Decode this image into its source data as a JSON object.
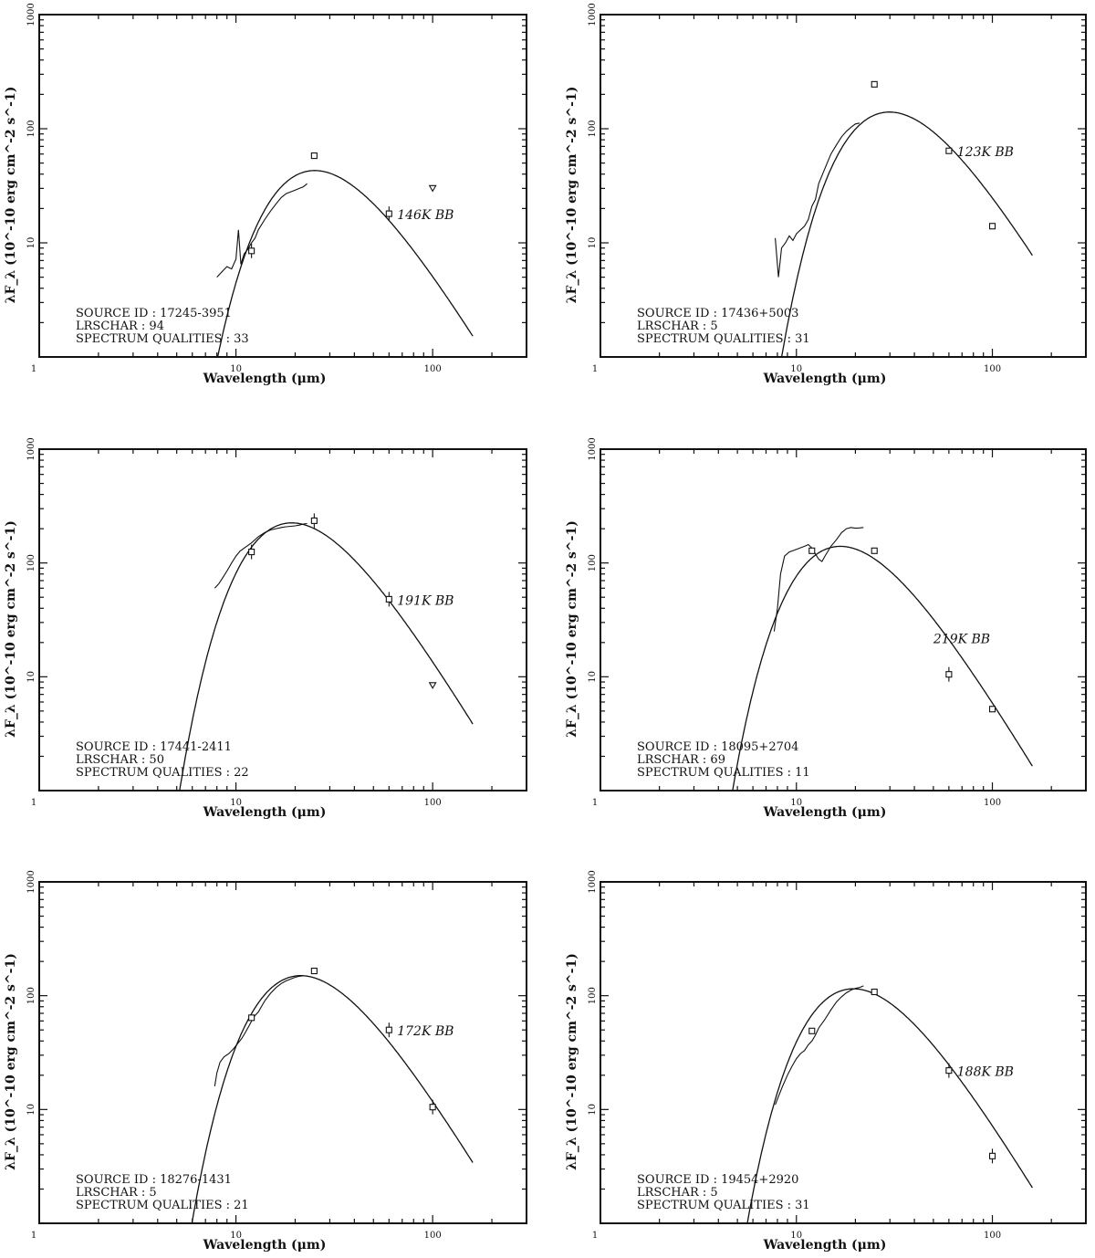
{
  "chart_data": [
    {
      "type": "line",
      "x_label": "Wavelength (μm)",
      "y_label": "λF_λ (10^-10 erg cm^-2 s^-1)",
      "xlim": [
        1,
        300
      ],
      "ylim": [
        1,
        1000
      ],
      "xscale": "log",
      "yscale": "log",
      "x_ticks": [
        "1",
        "10",
        "100"
      ],
      "y_ticks": [
        "1000",
        "100",
        "10"
      ],
      "bb_label": "146K BB",
      "bb_temp": 146,
      "bb_peak": 43,
      "source_id": "SOURCE ID : 17245-3951",
      "lrschar": "LRSCHAR : 94",
      "quality": "SPECTRUM QUALITIES : 33",
      "lrs_spectrum": [
        [
          8,
          5
        ],
        [
          8.5,
          5.6
        ],
        [
          9,
          6.2
        ],
        [
          9.5,
          5.9
        ],
        [
          10,
          7.2
        ],
        [
          10.3,
          13
        ],
        [
          10.6,
          6.5
        ],
        [
          11,
          8
        ],
        [
          11.5,
          8.8
        ],
        [
          12,
          10
        ],
        [
          12.5,
          11
        ],
        [
          13,
          13
        ],
        [
          14,
          16
        ],
        [
          15,
          19
        ],
        [
          16,
          22
        ],
        [
          17,
          25
        ],
        [
          18,
          27
        ],
        [
          19,
          28
        ],
        [
          20,
          29
        ],
        [
          21,
          30
        ],
        [
          22,
          31
        ],
        [
          23,
          33
        ]
      ],
      "photometry": [
        {
          "x": 12,
          "y": 8.5,
          "err": true
        },
        {
          "x": 25,
          "y": 58
        },
        {
          "x": 60,
          "y": 18,
          "err": true
        },
        {
          "x": 100,
          "y": 30,
          "upper": true
        }
      ]
    },
    {
      "type": "line",
      "x_label": "Wavelength (μm)",
      "y_label": "λF_λ (10^-10 erg cm^-2 s^-1)",
      "xlim": [
        1,
        300
      ],
      "ylim": [
        1,
        1000
      ],
      "xscale": "log",
      "yscale": "log",
      "x_ticks": [
        "1",
        "10",
        "100"
      ],
      "y_ticks": [
        "1000",
        "100",
        "10"
      ],
      "bb_label": "123K BB",
      "bb_temp": 123,
      "bb_peak": 140,
      "source_id": "SOURCE ID : 17436+5003",
      "lrschar": "LRSCHAR : 5",
      "quality": "SPECTRUM QUALITIES : 31",
      "lrs_spectrum": [
        [
          7.8,
          11
        ],
        [
          8.1,
          5
        ],
        [
          8.4,
          9
        ],
        [
          8.8,
          10
        ],
        [
          9.2,
          11.5
        ],
        [
          9.6,
          10.5
        ],
        [
          10,
          12
        ],
        [
          10.5,
          13
        ],
        [
          11,
          14
        ],
        [
          11.5,
          16
        ],
        [
          12,
          21
        ],
        [
          12.5,
          24
        ],
        [
          13,
          33
        ],
        [
          14,
          45
        ],
        [
          15,
          60
        ],
        [
          16,
          72
        ],
        [
          17,
          85
        ],
        [
          18,
          95
        ],
        [
          19,
          103
        ],
        [
          20,
          110
        ],
        [
          21,
          112
        ]
      ],
      "photometry": [
        {
          "x": 25,
          "y": 245
        },
        {
          "x": 60,
          "y": 64
        },
        {
          "x": 100,
          "y": 14
        }
      ]
    },
    {
      "type": "line",
      "x_label": "Wavelength (μm)",
      "y_label": "λF_λ (10^-10 erg cm^-2 s^-1)",
      "xlim": [
        1,
        300
      ],
      "ylim": [
        1,
        1000
      ],
      "xscale": "log",
      "yscale": "log",
      "x_ticks": [
        "1",
        "10",
        "100"
      ],
      "y_ticks": [
        "1000",
        "100",
        "10"
      ],
      "bb_label": "191K BB",
      "bb_temp": 191,
      "bb_peak": 225,
      "source_id": "SOURCE ID : 17441-2411",
      "lrschar": "LRSCHAR : 50",
      "quality": "SPECTRUM QUALITIES : 22",
      "lrs_spectrum": [
        [
          7.8,
          60
        ],
        [
          8.2,
          66
        ],
        [
          8.6,
          75
        ],
        [
          9,
          85
        ],
        [
          9.5,
          100
        ],
        [
          10,
          115
        ],
        [
          10.5,
          127
        ],
        [
          11,
          135
        ],
        [
          12,
          150
        ],
        [
          13,
          170
        ],
        [
          14,
          185
        ],
        [
          15,
          195
        ],
        [
          16,
          200
        ],
        [
          17,
          205
        ],
        [
          18,
          208
        ],
        [
          19,
          210
        ],
        [
          20,
          212
        ],
        [
          21,
          215
        ],
        [
          22,
          220
        ],
        [
          23,
          222
        ]
      ],
      "photometry": [
        {
          "x": 12,
          "y": 125,
          "err": true
        },
        {
          "x": 25,
          "y": 235,
          "err": true
        },
        {
          "x": 60,
          "y": 48,
          "err": true
        },
        {
          "x": 100,
          "y": 8.4,
          "upper": true
        }
      ]
    },
    {
      "type": "line",
      "x_label": "Wavelength (μm)",
      "y_label": "λF_λ (10^-10 erg cm^-2 s^-1)",
      "xlim": [
        1,
        300
      ],
      "ylim": [
        1,
        1000
      ],
      "xscale": "log",
      "yscale": "log",
      "x_ticks": [
        "1",
        "10",
        "100"
      ],
      "y_ticks": [
        "1000",
        "100",
        "10"
      ],
      "bb_label": "219K BB",
      "bb_temp": 219,
      "bb_peak": 140,
      "source_id": "SOURCE ID : 18095+2704",
      "lrschar": "LRSCHAR : 69",
      "quality": "SPECTRUM QUALITIES : 11",
      "lrs_spectrum": [
        [
          7.7,
          25
        ],
        [
          8,
          40
        ],
        [
          8.3,
          80
        ],
        [
          8.7,
          115
        ],
        [
          9.2,
          125
        ],
        [
          9.8,
          130
        ],
        [
          10.4,
          135
        ],
        [
          11,
          140
        ],
        [
          11.5,
          145
        ],
        [
          12,
          135
        ],
        [
          12.5,
          120
        ],
        [
          13,
          108
        ],
        [
          13.5,
          103
        ],
        [
          14,
          115
        ],
        [
          15,
          140
        ],
        [
          16,
          160
        ],
        [
          17,
          185
        ],
        [
          18,
          200
        ],
        [
          19,
          205
        ],
        [
          20,
          202
        ],
        [
          21,
          203
        ],
        [
          22,
          205
        ]
      ],
      "photometry": [
        {
          "x": 12,
          "y": 128
        },
        {
          "x": 25,
          "y": 128
        },
        {
          "x": 60,
          "y": 10.5,
          "err": true
        },
        {
          "x": 100,
          "y": 5.2
        }
      ]
    },
    {
      "type": "line",
      "x_label": "Wavelength (μm)",
      "y_label": "λF_λ (10^-10 erg cm^-2 s^-1)",
      "xlim": [
        1,
        300
      ],
      "ylim": [
        1,
        1000
      ],
      "xscale": "log",
      "yscale": "log",
      "x_ticks": [
        "1",
        "10",
        "100"
      ],
      "y_ticks": [
        "1000",
        "100",
        "10"
      ],
      "bb_label": "172K BB",
      "bb_temp": 172,
      "bb_peak": 150,
      "source_id": "SOURCE ID : 18276-1431",
      "lrschar": "LRSCHAR : 5",
      "quality": "SPECTRUM QUALITIES : 21",
      "lrs_spectrum": [
        [
          7.8,
          16
        ],
        [
          8,
          21
        ],
        [
          8.3,
          26
        ],
        [
          8.7,
          29
        ],
        [
          9.2,
          31
        ],
        [
          9.7,
          34
        ],
        [
          10.2,
          38
        ],
        [
          10.7,
          42
        ],
        [
          11.2,
          48
        ],
        [
          11.7,
          55
        ],
        [
          12.3,
          65
        ],
        [
          13,
          72
        ],
        [
          14,
          90
        ],
        [
          15,
          105
        ],
        [
          16,
          118
        ],
        [
          17,
          128
        ],
        [
          18,
          135
        ],
        [
          19,
          140
        ],
        [
          20,
          145
        ],
        [
          21,
          148
        ],
        [
          22,
          150
        ]
      ],
      "photometry": [
        {
          "x": 12,
          "y": 64
        },
        {
          "x": 25,
          "y": 165
        },
        {
          "x": 60,
          "y": 50,
          "err": true
        },
        {
          "x": 100,
          "y": 10.5,
          "err": true
        }
      ]
    },
    {
      "type": "line",
      "x_label": "Wavelength (μm)",
      "y_label": "λF_λ (10^-10 erg cm^-2 s^-1)",
      "xlim": [
        1,
        300
      ],
      "ylim": [
        1,
        1000
      ],
      "xscale": "log",
      "yscale": "log",
      "x_ticks": [
        "1",
        "10",
        "100"
      ],
      "y_ticks": [
        "1000",
        "100",
        "10"
      ],
      "bb_label": "188K BB",
      "bb_temp": 188,
      "bb_peak": 115,
      "source_id": "SOURCE ID : 19454+2920",
      "lrschar": "LRSCHAR : 5",
      "quality": "SPECTRUM QUALITIES : 31",
      "lrs_spectrum": [
        [
          7.8,
          11
        ],
        [
          8.1,
          13
        ],
        [
          8.5,
          16
        ],
        [
          9,
          20
        ],
        [
          9.5,
          24
        ],
        [
          10,
          28
        ],
        [
          10.5,
          31
        ],
        [
          11,
          33
        ],
        [
          11.5,
          37
        ],
        [
          12,
          40
        ],
        [
          12.5,
          45
        ],
        [
          13,
          52
        ],
        [
          14,
          62
        ],
        [
          15,
          75
        ],
        [
          16,
          88
        ],
        [
          17,
          98
        ],
        [
          18,
          106
        ],
        [
          19,
          112
        ],
        [
          20,
          116
        ],
        [
          21,
          118
        ],
        [
          22,
          122
        ]
      ],
      "photometry": [
        {
          "x": 12,
          "y": 49
        },
        {
          "x": 25,
          "y": 108
        },
        {
          "x": 60,
          "y": 22,
          "err": true
        },
        {
          "x": 100,
          "y": 3.9,
          "err": true
        }
      ]
    }
  ]
}
